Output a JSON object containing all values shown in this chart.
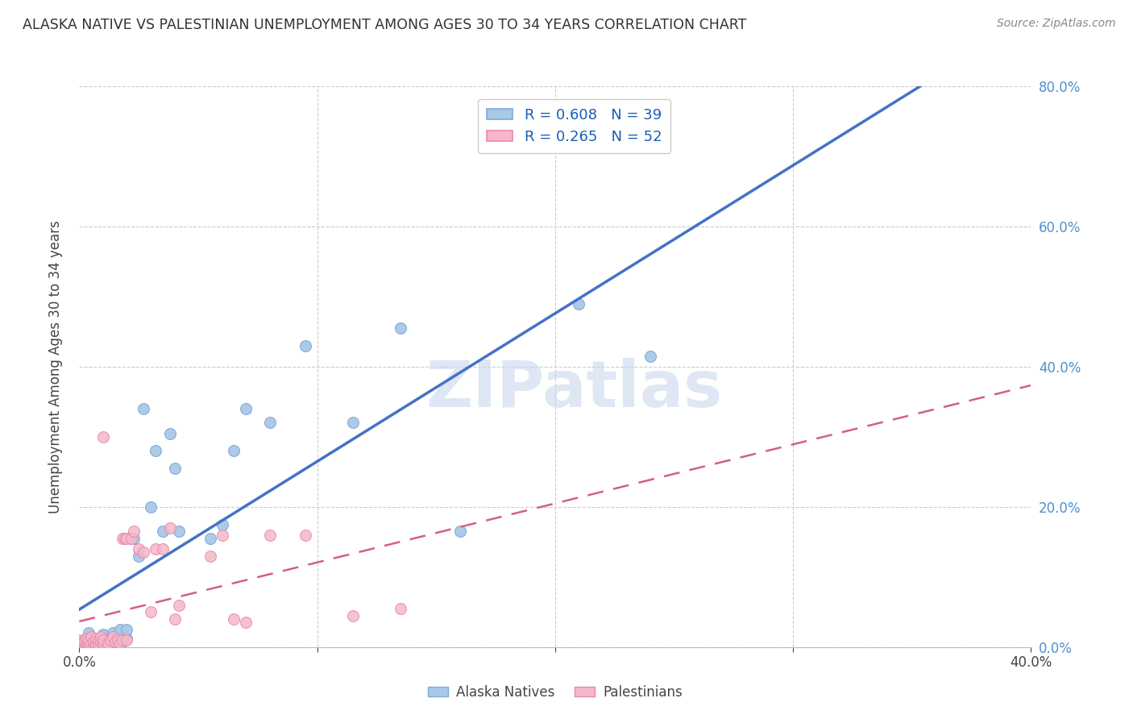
{
  "title": "ALASKA NATIVE VS PALESTINIAN UNEMPLOYMENT AMONG AGES 30 TO 34 YEARS CORRELATION CHART",
  "source": "Source: ZipAtlas.com",
  "ylabel": "Unemployment Among Ages 30 to 34 years",
  "xlim": [
    0.0,
    0.4
  ],
  "ylim": [
    0.0,
    0.8
  ],
  "xticks": [
    0.0,
    0.1,
    0.2,
    0.3,
    0.4
  ],
  "xticklabels_ends": [
    "0.0%",
    "40.0%"
  ],
  "yticks": [
    0.0,
    0.2,
    0.4,
    0.6,
    0.8
  ],
  "yticklabels": [
    "0.0%",
    "20.0%",
    "40.0%",
    "60.0%",
    "80.0%"
  ],
  "alaska_color": "#aac8e8",
  "alaska_edge": "#80aad4",
  "palestinian_color": "#f5b8ca",
  "palestinian_edge": "#e888a8",
  "alaska_R": 0.608,
  "alaska_N": 39,
  "palestinian_R": 0.265,
  "palestinian_N": 52,
  "legend_text_color": "#1a5fb4",
  "trend_alaska_color": "#4472c4",
  "trend_palestinian_color": "#d46080",
  "watermark_color": "#c8d8ec",
  "alaska_x": [
    0.002,
    0.004,
    0.005,
    0.007,
    0.008,
    0.009,
    0.01,
    0.01,
    0.01,
    0.012,
    0.013,
    0.014,
    0.015,
    0.016,
    0.017,
    0.018,
    0.02,
    0.02,
    0.022,
    0.023,
    0.025,
    0.027,
    0.03,
    0.032,
    0.035,
    0.038,
    0.04,
    0.042,
    0.055,
    0.06,
    0.065,
    0.07,
    0.08,
    0.095,
    0.115,
    0.135,
    0.16,
    0.21,
    0.24
  ],
  "alaska_y": [
    0.01,
    0.02,
    0.005,
    0.005,
    0.01,
    0.005,
    0.005,
    0.012,
    0.018,
    0.005,
    0.012,
    0.02,
    0.008,
    0.015,
    0.025,
    0.008,
    0.012,
    0.025,
    0.155,
    0.155,
    0.13,
    0.34,
    0.2,
    0.28,
    0.165,
    0.305,
    0.255,
    0.165,
    0.155,
    0.175,
    0.28,
    0.34,
    0.32,
    0.43,
    0.32,
    0.455,
    0.165,
    0.49,
    0.415
  ],
  "palestinian_x": [
    0.0,
    0.0,
    0.001,
    0.002,
    0.002,
    0.003,
    0.003,
    0.003,
    0.004,
    0.004,
    0.005,
    0.005,
    0.006,
    0.006,
    0.007,
    0.007,
    0.008,
    0.008,
    0.009,
    0.009,
    0.01,
    0.01,
    0.01,
    0.012,
    0.013,
    0.014,
    0.015,
    0.016,
    0.017,
    0.018,
    0.018,
    0.019,
    0.02,
    0.02,
    0.022,
    0.023,
    0.025,
    0.027,
    0.03,
    0.032,
    0.035,
    0.038,
    0.04,
    0.042,
    0.055,
    0.06,
    0.065,
    0.07,
    0.08,
    0.095,
    0.115,
    0.135
  ],
  "palestinian_y": [
    0.005,
    0.01,
    0.005,
    0.005,
    0.008,
    0.005,
    0.008,
    0.012,
    0.005,
    0.01,
    0.005,
    0.015,
    0.005,
    0.008,
    0.005,
    0.012,
    0.005,
    0.01,
    0.008,
    0.015,
    0.005,
    0.01,
    0.3,
    0.005,
    0.01,
    0.015,
    0.008,
    0.01,
    0.005,
    0.01,
    0.155,
    0.155,
    0.01,
    0.155,
    0.155,
    0.165,
    0.14,
    0.135,
    0.05,
    0.14,
    0.14,
    0.17,
    0.04,
    0.06,
    0.13,
    0.16,
    0.04,
    0.035,
    0.16,
    0.16,
    0.045,
    0.055
  ]
}
